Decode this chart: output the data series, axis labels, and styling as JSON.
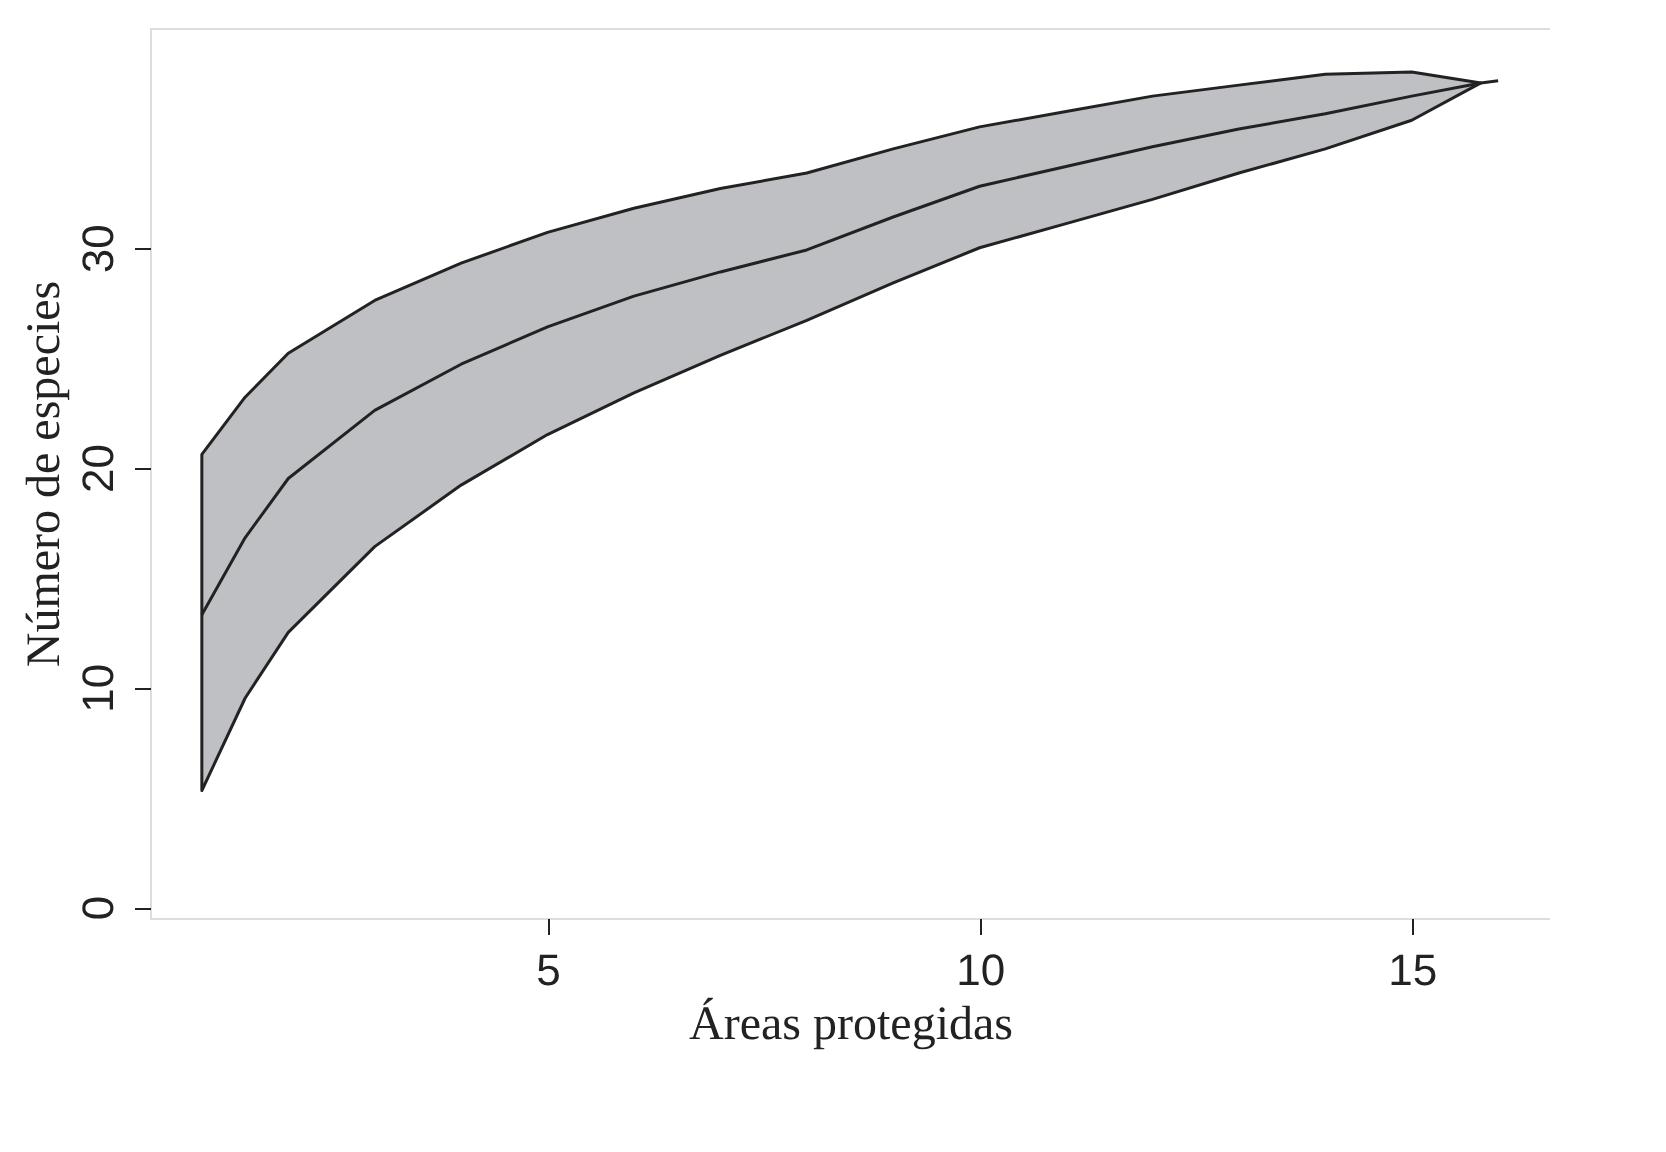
{
  "chart_data": {
    "type": "line",
    "xlabel": "Áreas protegidas",
    "ylabel": "Número de especies",
    "xlim": [
      0.4,
      16.6
    ],
    "ylim": [
      -0.5,
      40
    ],
    "xticks": [
      5,
      10,
      15
    ],
    "yticks": [
      0,
      10,
      20,
      30
    ],
    "grid": false,
    "marker": "none",
    "line_style": "solid",
    "series": [
      {
        "color": "#222222",
        "x": [
          1,
          1.5,
          2,
          3,
          4,
          5,
          6,
          7,
          8,
          9,
          10,
          11,
          12,
          13,
          14,
          15,
          15.8,
          16
        ],
        "values": [
          13.3,
          16.8,
          19.5,
          22.6,
          24.7,
          26.4,
          27.8,
          28.9,
          29.9,
          31.4,
          32.8,
          33.7,
          34.6,
          35.4,
          36.1,
          36.9,
          37.5,
          37.6
        ],
        "lower": [
          5.3,
          9.5,
          12.5,
          16.4,
          19.2,
          21.5,
          23.4,
          25.1,
          26.7,
          28.4,
          30.0,
          31.1,
          32.2,
          33.4,
          34.5,
          35.8,
          37.5,
          null
        ],
        "upper": [
          20.6,
          23.2,
          25.2,
          27.6,
          29.3,
          30.7,
          31.8,
          32.7,
          33.4,
          34.5,
          35.5,
          36.2,
          36.9,
          37.4,
          37.9,
          38.0,
          37.5,
          null
        ]
      }
    ]
  }
}
